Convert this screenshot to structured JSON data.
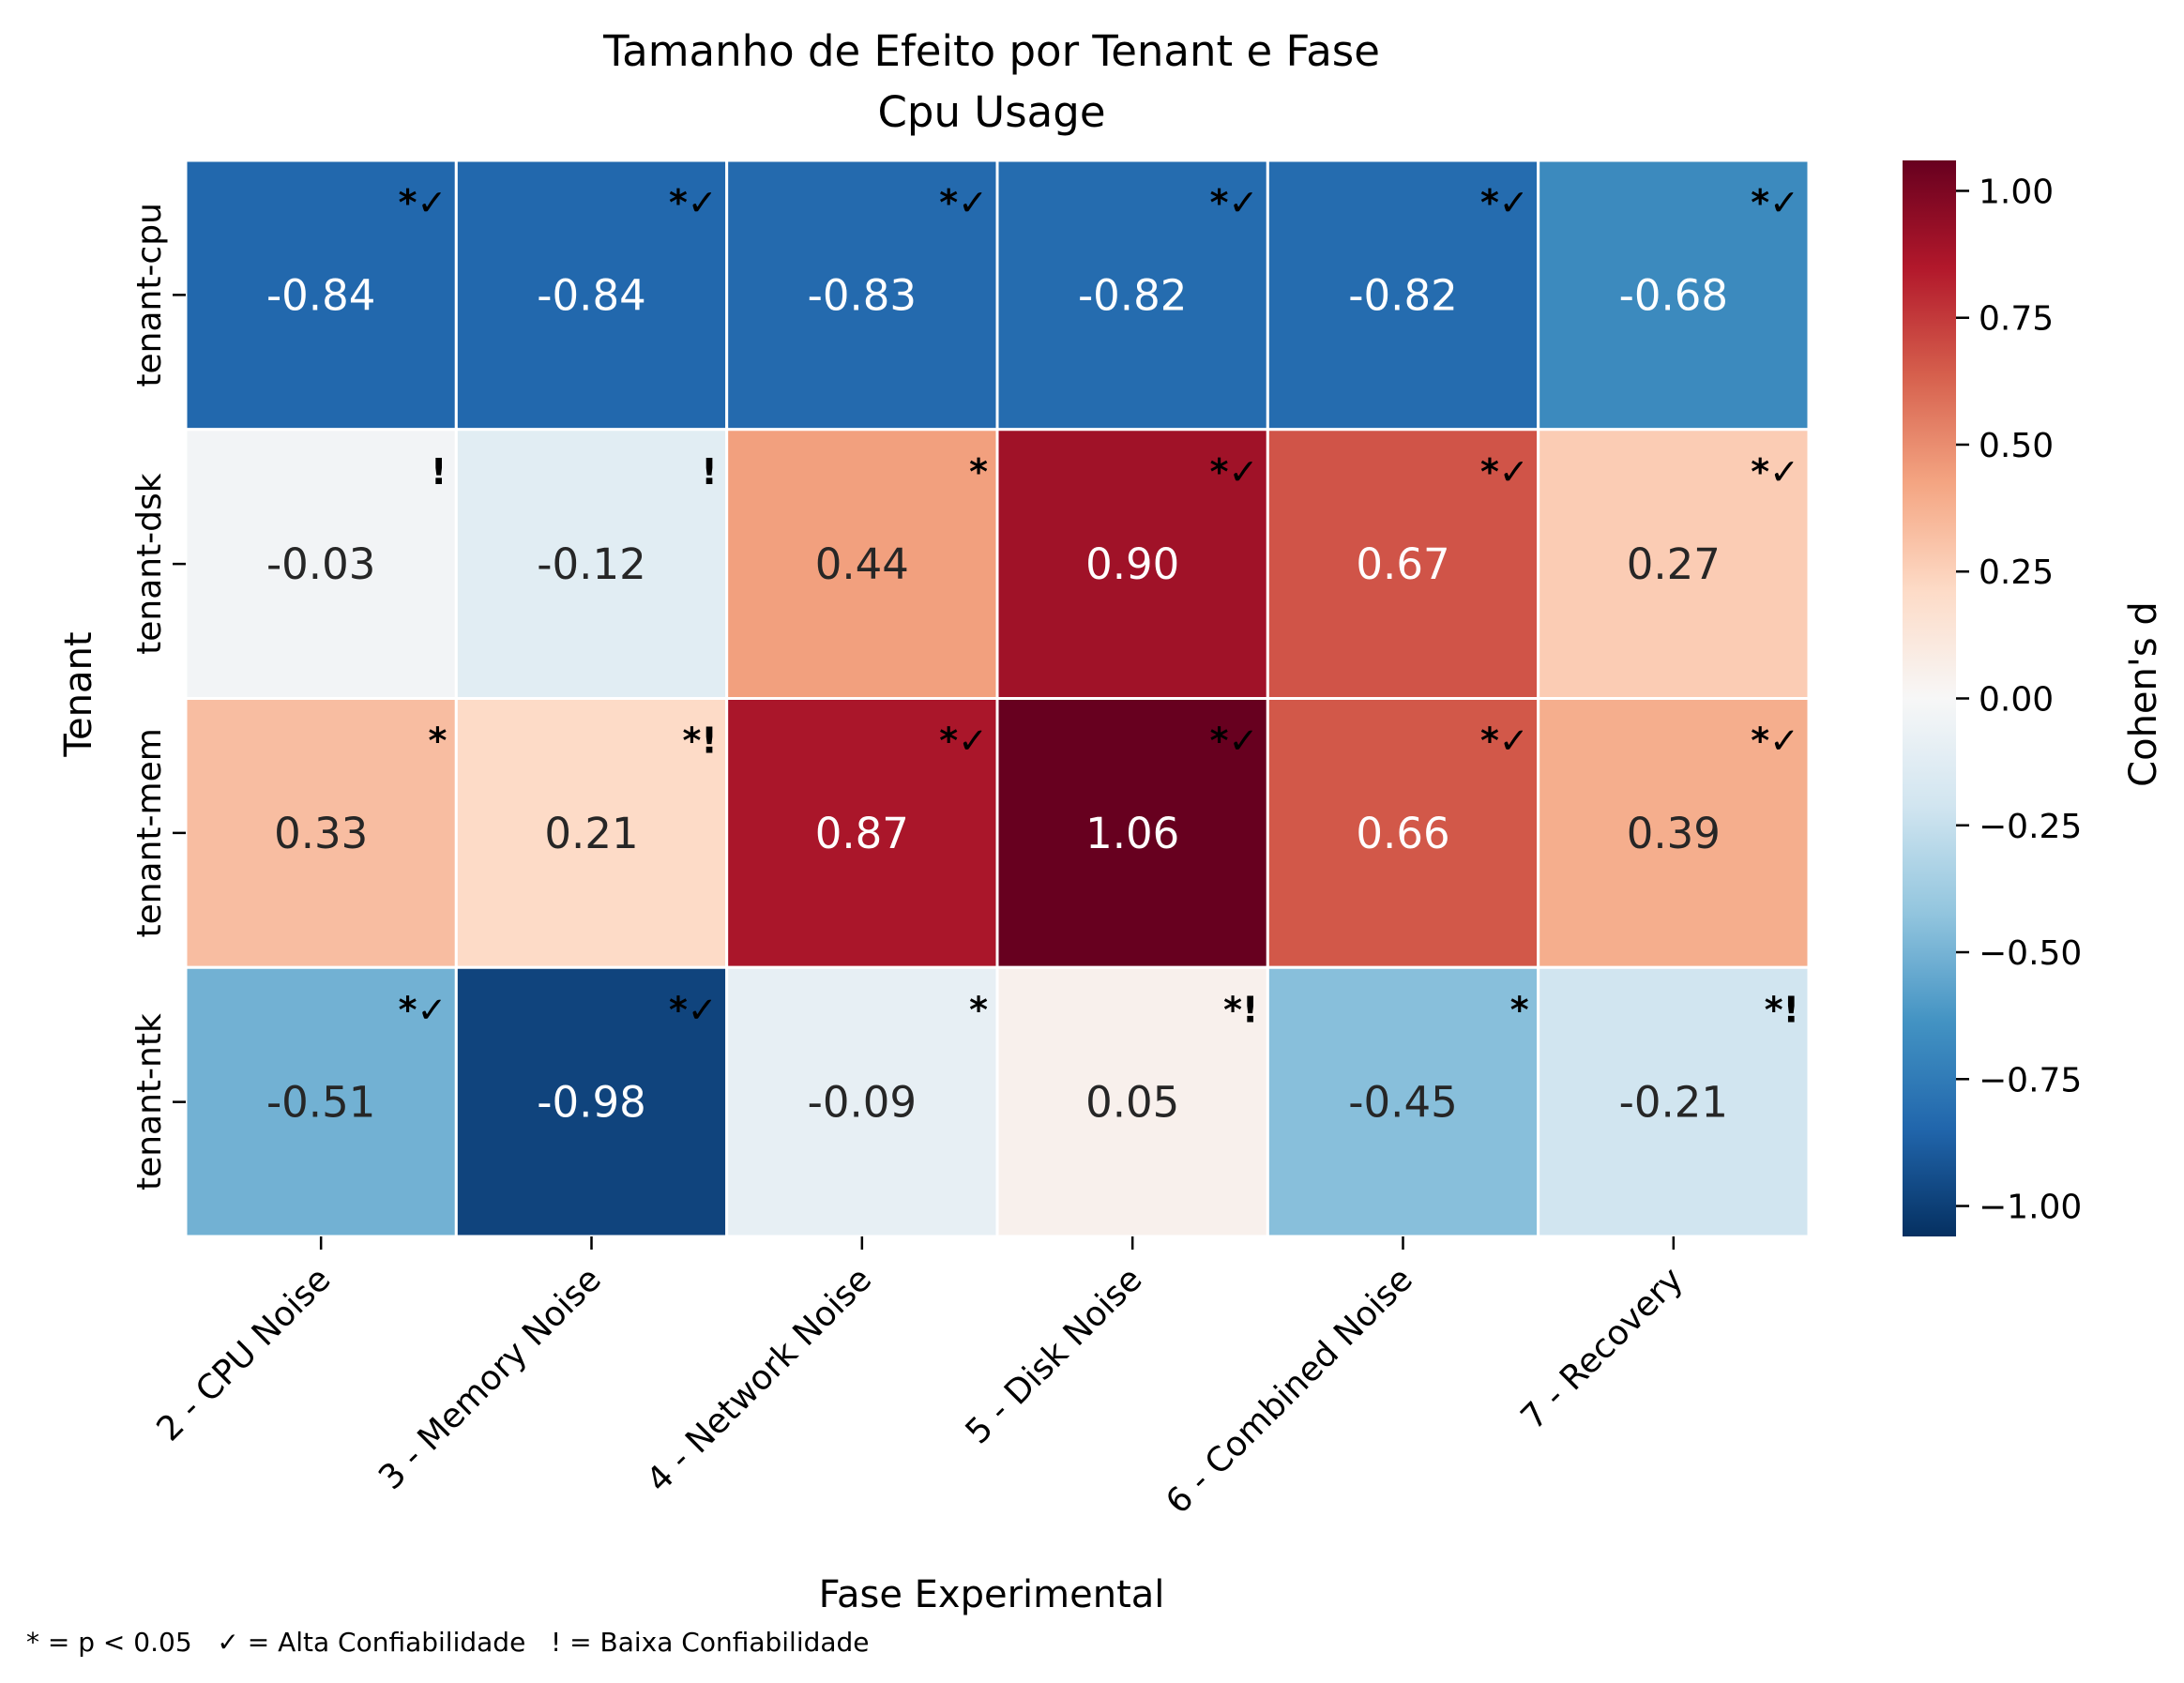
{
  "chart_data": {
    "type": "heatmap",
    "title": "Tamanho de Efeito por Tenant e Fase",
    "subtitle": "Cpu Usage",
    "xlabel": "Fase Experimental",
    "ylabel": "Tenant",
    "colorbar_label": "Cohen's d",
    "colormap": "RdBu_r",
    "vmin": -1.06,
    "vmax": 1.06,
    "colorbar_ticks": [
      1.0,
      0.75,
      0.5,
      0.25,
      0.0,
      -0.25,
      -0.5,
      -0.75,
      -1.0
    ],
    "colorbar_tick_labels": [
      "1.00",
      "0.75",
      "0.50",
      "0.25",
      "0.00",
      "−0.25",
      "−0.50",
      "−0.75",
      "−1.00"
    ],
    "columns": [
      "2 - CPU Noise",
      "3 - Memory Noise",
      "4 - Network Noise",
      "5 - Disk Noise",
      "6 - Combined Noise",
      "7 - Recovery"
    ],
    "rows": [
      "tenant-cpu",
      "tenant-dsk",
      "tenant-mem",
      "tenant-ntk"
    ],
    "values": [
      [
        -0.84,
        -0.84,
        -0.83,
        -0.82,
        -0.82,
        -0.68
      ],
      [
        -0.03,
        -0.12,
        0.44,
        0.9,
        0.67,
        0.27
      ],
      [
        0.33,
        0.21,
        0.87,
        1.06,
        0.66,
        0.39
      ],
      [
        -0.51,
        -0.98,
        -0.09,
        0.05,
        -0.45,
        -0.21
      ]
    ],
    "value_labels": [
      [
        "-0.84",
        "-0.84",
        "-0.83",
        "-0.82",
        "-0.82",
        "-0.68"
      ],
      [
        "-0.03",
        "-0.12",
        "0.44",
        "0.90",
        "0.67",
        "0.27"
      ],
      [
        "0.33",
        "0.21",
        "0.87",
        "1.06",
        "0.66",
        "0.39"
      ],
      [
        "-0.51",
        "-0.98",
        "-0.09",
        "0.05",
        "-0.45",
        "-0.21"
      ]
    ],
    "markers": [
      [
        "*✓",
        "*✓",
        "*✓",
        "*✓",
        "*✓",
        "*✓"
      ],
      [
        "!",
        "!",
        "*",
        "*✓",
        "*✓",
        "*✓"
      ],
      [
        "*",
        "*!",
        "*✓",
        "*✓",
        "*✓",
        "*✓"
      ],
      [
        "*✓",
        "*✓",
        "*",
        "*!",
        "*",
        "*!"
      ]
    ],
    "footnote": "* = p < 0.05   ✓ = Alta Confiabilidade   ! = Baixa Confiabilidade"
  }
}
